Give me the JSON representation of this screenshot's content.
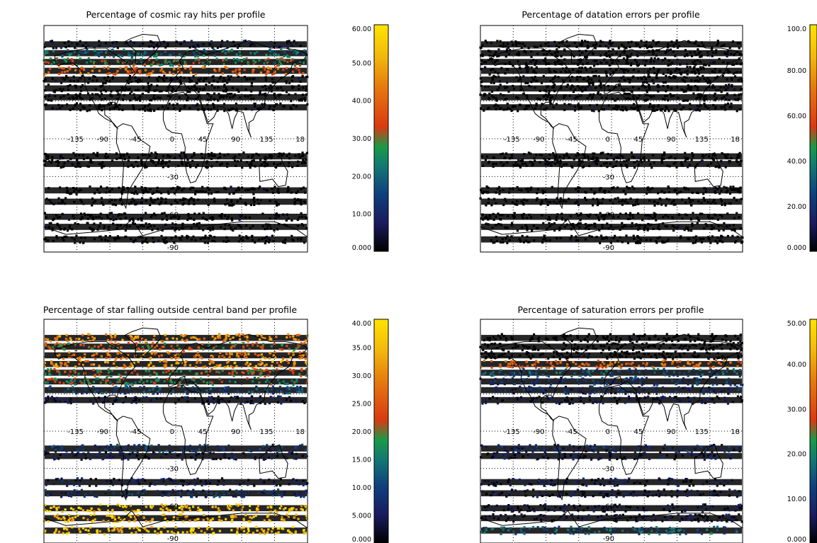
{
  "chart_data": [
    {
      "type": "map-scatter",
      "title": "Percentage of cosmic ray hits per profile",
      "colorbar": {
        "min": 0,
        "max": 60,
        "ticks": [
          "0.000",
          "10.00",
          "20.00",
          "30.00",
          "40.00",
          "50.00",
          "60.00"
        ]
      },
      "map_labels": {
        "lon": [
          "-135",
          "-90",
          "-45",
          "0",
          "45",
          "90",
          "135",
          "18"
        ],
        "lat": [
          "-30",
          "-60",
          "-90"
        ]
      },
      "bands": [
        {
          "lat": 75,
          "value": 3
        },
        {
          "lat": 68,
          "value": 20
        },
        {
          "lat": 61,
          "value": 28
        },
        {
          "lat": 54,
          "value": 40
        },
        {
          "lat": 47,
          "value": 0
        },
        {
          "lat": 40,
          "value": 0
        },
        {
          "lat": 33,
          "value": 0
        },
        {
          "lat": 25,
          "value": 0
        },
        {
          "lat": -14,
          "value": 0
        },
        {
          "lat": -20,
          "value": 0
        },
        {
          "lat": -41,
          "value": 0
        },
        {
          "lat": -50,
          "value": 0
        },
        {
          "lat": -62,
          "value": 0
        },
        {
          "lat": -70,
          "value": 0
        },
        {
          "lat": -80,
          "value": 0
        }
      ]
    },
    {
      "type": "map-scatter",
      "title": "Percentage of datation errors per profile",
      "colorbar": {
        "min": 0,
        "max": 100,
        "ticks": [
          "0.000",
          "20.00",
          "40.00",
          "60.00",
          "80.00",
          "100.0"
        ]
      },
      "map_labels": {
        "lon": [
          "-135",
          "-90",
          "-45",
          "0",
          "45",
          "90",
          "135",
          "18"
        ],
        "lat": [
          "-30",
          "-60",
          "-90"
        ]
      },
      "bands": [
        {
          "lat": 75,
          "value": 0
        },
        {
          "lat": 68,
          "value": 0
        },
        {
          "lat": 61,
          "value": 0
        },
        {
          "lat": 54,
          "value": 0
        },
        {
          "lat": 47,
          "value": 0
        },
        {
          "lat": 40,
          "value": 0
        },
        {
          "lat": 33,
          "value": 0
        },
        {
          "lat": 25,
          "value": 0
        },
        {
          "lat": -14,
          "value": 0
        },
        {
          "lat": -20,
          "value": 0
        },
        {
          "lat": -41,
          "value": 0
        },
        {
          "lat": -50,
          "value": 0
        },
        {
          "lat": -62,
          "value": 0
        },
        {
          "lat": -70,
          "value": 0
        },
        {
          "lat": -80,
          "value": 0
        }
      ]
    },
    {
      "type": "map-scatter",
      "title": "Percentage of star falling outside central band per profile",
      "colorbar": {
        "min": 0,
        "max": 40,
        "ticks": [
          "0.000",
          "5.000",
          "10.00",
          "15.00",
          "20.00",
          "25.00",
          "30.00",
          "35.00",
          "40.00"
        ]
      },
      "map_labels": {
        "lon": [
          "-135",
          "-90",
          "-45",
          "0",
          "45",
          "90",
          "135",
          "18"
        ],
        "lat": [
          "-30",
          "-60",
          "-90"
        ]
      },
      "bands": [
        {
          "lat": 75,
          "value": 30
        },
        {
          "lat": 68,
          "value": 22
        },
        {
          "lat": 61,
          "value": 29
        },
        {
          "lat": 54,
          "value": 31
        },
        {
          "lat": 47,
          "value": 21
        },
        {
          "lat": 40,
          "value": 18
        },
        {
          "lat": 33,
          "value": 10
        },
        {
          "lat": 25,
          "value": 3
        },
        {
          "lat": -14,
          "value": 8
        },
        {
          "lat": -20,
          "value": 3
        },
        {
          "lat": -41,
          "value": 4
        },
        {
          "lat": -50,
          "value": 7
        },
        {
          "lat": -62,
          "value": 36
        },
        {
          "lat": -70,
          "value": 34
        },
        {
          "lat": -80,
          "value": 36
        }
      ]
    },
    {
      "type": "map-scatter",
      "title": "Percentage of saturation errors per profile",
      "colorbar": {
        "min": 0,
        "max": 50,
        "ticks": [
          "0.000",
          "10.00",
          "20.00",
          "30.00",
          "40.00",
          "50.00"
        ]
      },
      "map_labels": {
        "lon": [
          "-135",
          "-90",
          "-45",
          "0",
          "45",
          "90",
          "135",
          "18"
        ],
        "lat": [
          "-30",
          "-60",
          "-90"
        ]
      },
      "bands": [
        {
          "lat": 75,
          "value": 0
        },
        {
          "lat": 68,
          "value": 0
        },
        {
          "lat": 61,
          "value": 0
        },
        {
          "lat": 54,
          "value": 33
        },
        {
          "lat": 47,
          "value": 14
        },
        {
          "lat": 40,
          "value": 10
        },
        {
          "lat": 33,
          "value": 8
        },
        {
          "lat": 25,
          "value": 3
        },
        {
          "lat": -14,
          "value": 8
        },
        {
          "lat": -20,
          "value": 4
        },
        {
          "lat": -41,
          "value": 4
        },
        {
          "lat": -50,
          "value": 3
        },
        {
          "lat": -62,
          "value": 3
        },
        {
          "lat": -70,
          "value": 2
        },
        {
          "lat": -80,
          "value": 15
        }
      ]
    }
  ]
}
